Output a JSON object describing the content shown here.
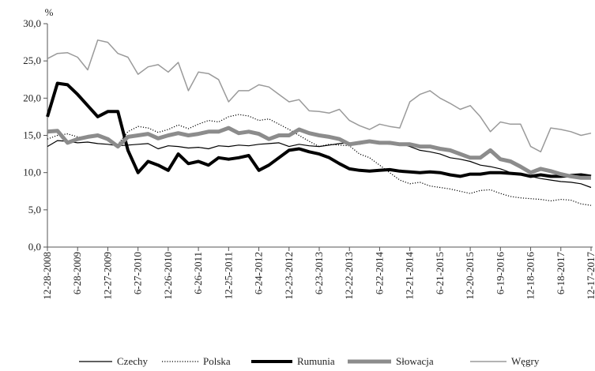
{
  "chart_data": {
    "type": "line",
    "y_label": "%",
    "categories": [
      "12-28-2008",
      null,
      null,
      "6-28-2009",
      null,
      null,
      "12-27-2009",
      null,
      null,
      "6-27-2010",
      null,
      null,
      "12-26-2010",
      null,
      null,
      "6-26-2011",
      null,
      null,
      "12-25-2011",
      null,
      null,
      "6-24-2012",
      null,
      null,
      "12-23-2012",
      null,
      null,
      "6-23-2013",
      null,
      null,
      "12-22-2013",
      null,
      null,
      "6-22-2014",
      null,
      null,
      "12-21-2014",
      null,
      null,
      "6-21-2015",
      null,
      null,
      "12-20-2015",
      null,
      null,
      "6-19-2016",
      null,
      null,
      "12-18-2016",
      null,
      null,
      "6-18-2017",
      null,
      null,
      "12-17-2017"
    ],
    "series": [
      {
        "name": "Czechy",
        "color": "#000000",
        "values": [
          13.5,
          14.3,
          14.2,
          14.0,
          14.1,
          13.9,
          13.8,
          13.6,
          13.7,
          13.8,
          13.9,
          13.2,
          13.6,
          13.5,
          13.3,
          13.4,
          13.2,
          13.6,
          13.5,
          13.7,
          13.6,
          13.8,
          13.9,
          14.0,
          13.5,
          13.8,
          13.6,
          13.5,
          13.7,
          13.9,
          14.0,
          13.8,
          14.1,
          14.0,
          13.8,
          13.9,
          13.5,
          13.0,
          12.8,
          12.5,
          12.0,
          11.8,
          11.5,
          11.0,
          10.8,
          10.5,
          10.0,
          9.8,
          9.5,
          9.2,
          9.0,
          8.8,
          8.7,
          8.5,
          8.0
        ]
      },
      {
        "name": "Polska",
        "color": "#000000",
        "values": [
          14.5,
          15.0,
          15.2,
          14.8,
          14.6,
          14.9,
          14.3,
          13.8,
          15.5,
          16.2,
          16.0,
          15.4,
          15.8,
          16.4,
          15.9,
          16.5,
          17.0,
          16.8,
          17.5,
          17.8,
          17.6,
          17.0,
          17.2,
          16.5,
          15.8,
          15.0,
          14.2,
          13.5,
          13.8,
          13.7,
          13.6,
          12.5,
          12.0,
          11.0,
          10.0,
          9.0,
          8.5,
          8.7,
          8.2,
          8.0,
          7.8,
          7.5,
          7.2,
          7.6,
          7.7,
          7.2,
          6.8,
          6.6,
          6.5,
          6.4,
          6.2,
          6.4,
          6.3,
          5.8,
          5.6
        ]
      },
      {
        "name": "Rumunia",
        "color": "#000000",
        "values": [
          17.5,
          22.0,
          21.8,
          20.5,
          19.0,
          17.5,
          18.2,
          18.2,
          13.0,
          10.0,
          11.5,
          11.0,
          10.3,
          12.5,
          11.2,
          11.5,
          11.0,
          12.0,
          11.8,
          12.0,
          12.3,
          10.3,
          11.0,
          12.0,
          13.0,
          13.2,
          12.8,
          12.5,
          12.0,
          11.2,
          10.5,
          10.3,
          10.2,
          10.3,
          10.4,
          10.2,
          10.1,
          10.0,
          10.1,
          10.0,
          9.7,
          9.5,
          9.8,
          9.8,
          10.0,
          10.0,
          9.9,
          9.8,
          9.5,
          9.7,
          9.5,
          9.5,
          9.6,
          9.7,
          9.5
        ]
      },
      {
        "name": "Słowacja",
        "color": "#8c8c8c",
        "values": [
          15.5,
          15.6,
          14.0,
          14.5,
          14.8,
          15.0,
          14.5,
          13.5,
          14.8,
          15.0,
          15.2,
          14.6,
          15.0,
          15.3,
          15.0,
          15.2,
          15.5,
          15.5,
          16.0,
          15.3,
          15.5,
          15.2,
          14.5,
          15.0,
          15.0,
          15.8,
          15.3,
          15.0,
          14.8,
          14.5,
          13.8,
          14.0,
          14.2,
          14.0,
          14.0,
          13.8,
          13.8,
          13.5,
          13.5,
          13.2,
          13.0,
          12.5,
          12.0,
          12.0,
          13.0,
          11.8,
          11.5,
          10.8,
          10.0,
          10.5,
          10.2,
          9.8,
          9.5,
          9.3,
          9.3
        ]
      },
      {
        "name": "Węgry",
        "color": "#9a9a9a",
        "values": [
          25.3,
          26.0,
          26.1,
          25.5,
          23.8,
          27.8,
          27.5,
          26.0,
          25.5,
          23.2,
          24.2,
          24.5,
          23.5,
          24.8,
          21.0,
          23.5,
          23.3,
          22.5,
          19.5,
          21.0,
          21.0,
          21.8,
          21.5,
          20.5,
          19.5,
          19.8,
          18.3,
          18.2,
          18.0,
          18.5,
          17.0,
          16.3,
          15.8,
          16.5,
          16.2,
          16.0,
          19.5,
          20.5,
          21.0,
          20.0,
          19.3,
          18.5,
          19.0,
          17.5,
          15.5,
          16.8,
          16.5,
          16.5,
          13.5,
          12.8,
          16.0,
          15.8,
          15.5,
          15.0,
          15.3
        ]
      }
    ],
    "ylim": [
      0,
      30
    ],
    "yticks": [
      {
        "value": 0,
        "label": "0,0"
      },
      {
        "value": 5,
        "label": "5,0"
      },
      {
        "value": 10,
        "label": "10,0"
      },
      {
        "value": 15,
        "label": "15,0"
      },
      {
        "value": 20,
        "label": "20,0"
      },
      {
        "value": 25,
        "label": "25,0"
      },
      {
        "value": 30,
        "label": "30,0"
      }
    ],
    "grid": false,
    "legend": "bottom"
  }
}
